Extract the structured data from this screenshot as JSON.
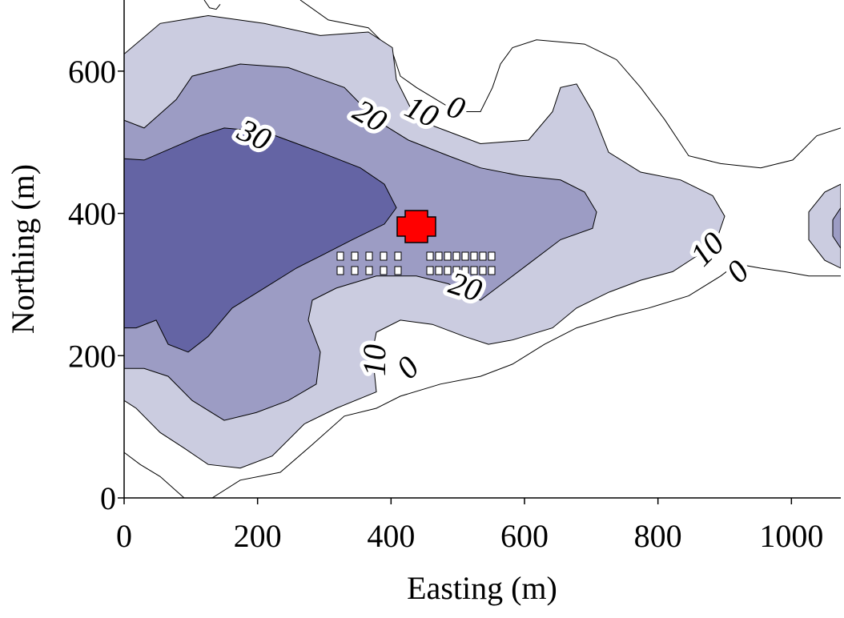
{
  "chart_data": {
    "type": "contour",
    "xlabel": "Easting (m)",
    "ylabel": "Northing (m)",
    "xlim": [
      0,
      1074
    ],
    "ylim": [
      0,
      700
    ],
    "xticks": [
      0,
      200,
      400,
      600,
      800,
      1000
    ],
    "yticks": [
      0,
      200,
      400,
      600
    ],
    "line_color": "#000000",
    "contours": [
      {
        "level": 0,
        "x": [
          0,
          24,
          54,
          90,
          null,
          132,
          174,
          234,
          282,
          330,
          378,
          414,
          474,
          534,
          582,
          630,
          678,
          738,
          786,
          846,
          894,
          918,
          954,
          990,
          1026,
          1074,
          null,
          264,
          306,
          366,
          402,
          414,
          438,
          468,
          498,
          534,
          552,
          564,
          582,
          618,
          690,
          738,
          774,
          810,
          846,
          894,
          954,
          1002,
          1038,
          1074,
          null,
          120,
          128,
          138,
          144
        ],
        "y": [
          64,
          47,
          30,
          0,
          null,
          0,
          25,
          36,
          75,
          115,
          126,
          143,
          160,
          171,
          188,
          216,
          239,
          256,
          267,
          284,
          312,
          329,
          323,
          318,
          312,
          312,
          null,
          700,
          672,
          661,
          627,
          593,
          577,
          560,
          543,
          543,
          577,
          610,
          633,
          644,
          638,
          616,
          577,
          532,
          481,
          470,
          464,
          475,
          509,
          520,
          null,
          700,
          689,
          687,
          694
        ]
      },
      {
        "level": 10,
        "color": "#cbcce0",
        "x": [
          0,
          54,
          126,
          210,
          294,
          366,
          402,
          408,
          438,
          486,
          534,
          606,
          642,
          654,
          678,
          702,
          726,
          774,
          834,
          882,
          900,
          888,
          858,
          822,
          774,
          726,
          678,
          642,
          582,
          546,
          510,
          462,
          414,
          378,
          372,
          378,
          318,
          270,
          222,
          174,
          126,
          90,
          54,
          18,
          0,
          null,
          1074,
          1050,
          1026,
          1026,
          1050,
          1074
        ],
        "y": [
          624,
          667,
          678,
          667,
          650,
          655,
          633,
          588,
          532,
          515,
          498,
          503,
          543,
          577,
          582,
          543,
          486,
          458,
          447,
          425,
          396,
          363,
          340,
          318,
          306,
          289,
          267,
          239,
          222,
          216,
          227,
          244,
          250,
          233,
          205,
          149,
          126,
          104,
          59,
          42,
          47,
          70,
          92,
          126,
          137,
          null,
          441,
          430,
          402,
          363,
          334,
          323
        ]
      },
      {
        "level": 20,
        "color": "#9c9cc4",
        "x": [
          0,
          30,
          78,
          102,
          174,
          246,
          330,
          378,
          426,
          486,
          534,
          594,
          654,
          690,
          708,
          702,
          654,
          606,
          558,
          534,
          510,
          486,
          438,
          378,
          318,
          282,
          276,
          294,
          288,
          246,
          198,
          150,
          102,
          66,
          30,
          0,
          null,
          1074,
          1062,
          1062,
          1074
        ],
        "y": [
          531,
          520,
          560,
          593,
          610,
          605,
          577,
          531,
          503,
          481,
          464,
          453,
          447,
          430,
          402,
          379,
          363,
          329,
          295,
          278,
          289,
          301,
          312,
          312,
          295,
          278,
          250,
          205,
          160,
          137,
          120,
          109,
          137,
          171,
          182,
          182,
          null,
          408,
          391,
          368,
          351
        ]
      },
      {
        "level": 30,
        "color": "#6464a4",
        "x": [
          0,
          30,
          114,
          150,
          210,
          294,
          354,
          390,
          408,
          390,
          342,
          294,
          258,
          210,
          162,
          126,
          96,
          66,
          48,
          18,
          0
        ],
        "y": [
          477,
          475,
          509,
          520,
          515,
          486,
          464,
          441,
          408,
          385,
          363,
          340,
          323,
          295,
          267,
          227,
          205,
          216,
          250,
          239,
          239
        ]
      }
    ]
  }
}
